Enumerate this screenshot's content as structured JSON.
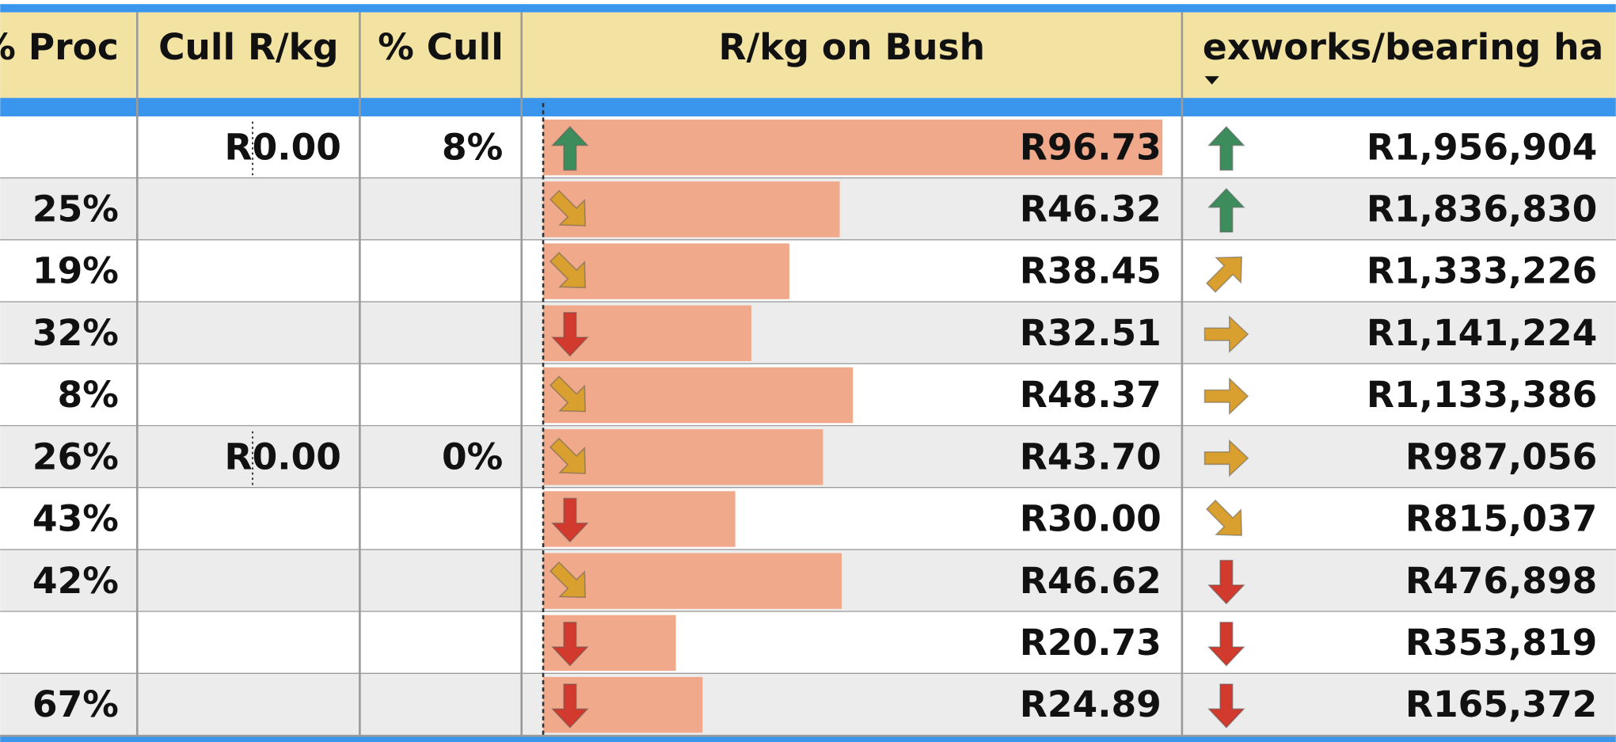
{
  "table": {
    "headers": [
      "% Proc",
      "Cull R/kg",
      "% Cull",
      "R/kg on Bush",
      "exworks/bearing ha"
    ],
    "sorted_column": 4,
    "trend_colors": {
      "up": "#3d8c5c",
      "up-right": "#d9a030",
      "right": "#d9a030",
      "down-right": "#d9a030",
      "down": "#d23a2e"
    },
    "bar_color": "#f0a98a",
    "rows": [
      {
        "proc": null,
        "cull_rkg": "R0.00",
        "cull_pct": "8%",
        "bush": {
          "value": 96.73,
          "label": "R96.73"
        },
        "bush_trend": "up",
        "exworks_trend": "up",
        "exworks": "R1,956,904"
      },
      {
        "proc": "25%",
        "cull_rkg": null,
        "cull_pct": null,
        "bush": {
          "value": 46.32,
          "label": "R46.32"
        },
        "bush_trend": "down-right",
        "exworks_trend": "up",
        "exworks": "R1,836,830"
      },
      {
        "proc": "19%",
        "cull_rkg": null,
        "cull_pct": null,
        "bush": {
          "value": 38.45,
          "label": "R38.45"
        },
        "bush_trend": "down-right",
        "exworks_trend": "up-right",
        "exworks": "R1,333,226"
      },
      {
        "proc": "32%",
        "cull_rkg": null,
        "cull_pct": null,
        "bush": {
          "value": 32.51,
          "label": "R32.51"
        },
        "bush_trend": "down",
        "exworks_trend": "right",
        "exworks": "R1,141,224"
      },
      {
        "proc": "8%",
        "cull_rkg": null,
        "cull_pct": null,
        "bush": {
          "value": 48.37,
          "label": "R48.37"
        },
        "bush_trend": "down-right",
        "exworks_trend": "right",
        "exworks": "R1,133,386"
      },
      {
        "proc": "26%",
        "cull_rkg": "R0.00",
        "cull_pct": "0%",
        "bush": {
          "value": 43.7,
          "label": "R43.70"
        },
        "bush_trend": "down-right",
        "exworks_trend": "right",
        "exworks": "R987,056"
      },
      {
        "proc": "43%",
        "cull_rkg": null,
        "cull_pct": null,
        "bush": {
          "value": 30.0,
          "label": "R30.00"
        },
        "bush_trend": "down",
        "exworks_trend": "down-right",
        "exworks": "R815,037"
      },
      {
        "proc": "42%",
        "cull_rkg": null,
        "cull_pct": null,
        "bush": {
          "value": 46.62,
          "label": "R46.62"
        },
        "bush_trend": "down-right",
        "exworks_trend": "down",
        "exworks": "R476,898"
      },
      {
        "proc": null,
        "cull_rkg": null,
        "cull_pct": null,
        "bush": {
          "value": 20.73,
          "label": "R20.73"
        },
        "bush_trend": "down",
        "exworks_trend": "down",
        "exworks": "R353,819"
      },
      {
        "proc": "67%",
        "cull_rkg": null,
        "cull_pct": null,
        "bush": {
          "value": 24.89,
          "label": "R24.89"
        },
        "bush_trend": "down",
        "exworks_trend": "down",
        "exworks": "R165,372"
      }
    ]
  }
}
